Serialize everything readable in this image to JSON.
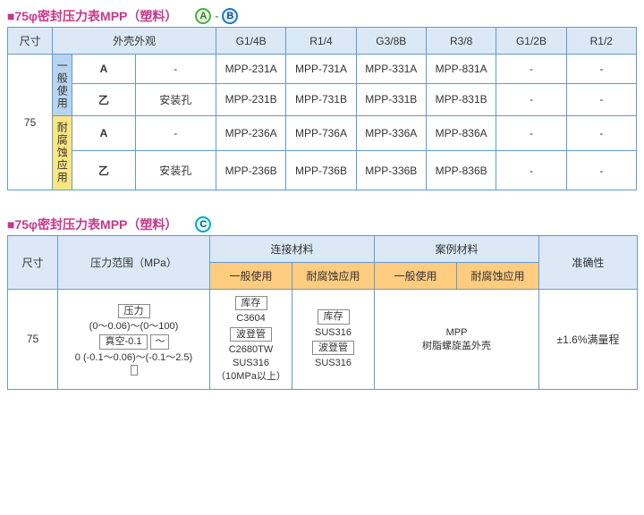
{
  "colors": {
    "title": "#c9378c",
    "border": "#6699cc",
    "header_bg": "#dbe9f7",
    "blue_strip": "#b8d4f0",
    "yellow_strip": "#ffe680",
    "orange_hdr": "#ffcc80"
  },
  "table1": {
    "title": "■75φ密封压力表MPP（塑料）",
    "badges": [
      "A",
      "B"
    ],
    "headers": {
      "size": "尺寸",
      "appearance": "外壳外观",
      "cols": [
        "G1/4B",
        "R1/4",
        "G3/8B",
        "R3/8",
        "G1/2B",
        "R1/2"
      ]
    },
    "appearance_col_header": "外壳外观",
    "shape_a": "A",
    "shape_z": "乙",
    "hole_none": "-",
    "hole_text": "安装孔",
    "strip1": "一般使用",
    "strip2": "耐腐蚀应用",
    "size_value": "75",
    "rows": [
      {
        "cells": [
          "MPP-231A",
          "MPP-731A",
          "MPP-331A",
          "MPP-831A",
          "-",
          "-"
        ]
      },
      {
        "cells": [
          "MPP-231B",
          "MPP-731B",
          "MPP-331B",
          "MPP-831B",
          "-",
          "-"
        ]
      },
      {
        "cells": [
          "MPP-236A",
          "MPP-736A",
          "MPP-336A",
          "MPP-836A",
          "-",
          "-"
        ]
      },
      {
        "cells": [
          "MPP-236B",
          "MPP-736B",
          "MPP-336B",
          "MPP-836B",
          "-",
          "-"
        ]
      }
    ]
  },
  "table2": {
    "title": "■75φ密封压力表MPP（塑料）",
    "badge": "C",
    "headers": {
      "size": "尺寸",
      "range": "压力范围（MPa）",
      "conn_mat": "连接材料",
      "case_mat": "案例材料",
      "general": "一般使用",
      "corrosion": "耐腐蚀应用",
      "accuracy": "准确性"
    },
    "size_value": "75",
    "range": {
      "pill_pressure": "压力",
      "line1": "(0～0.06)～(0～100)",
      "pill_vacuum": "真空-0.1",
      "tilde": "～",
      "line2": "0 (-0.1～0.06)～(-0.1～2.5)"
    },
    "conn_general": {
      "pill_stock": "库存",
      "l1": "C3604",
      "pill_bourdon": "波登管",
      "l2": "C2680TW",
      "l3": "SUS316",
      "l4": "（10MPa以上）"
    },
    "conn_corr": {
      "pill_stock": "库存",
      "l1": "SUS316",
      "pill_bourdon": "波登管",
      "l2": "SUS316"
    },
    "case": "MPP\n树脂螺旋盖外壳",
    "case_l1": "MPP",
    "case_l2": "树脂螺旋盖外壳",
    "accuracy": "±1.6%满量程"
  }
}
